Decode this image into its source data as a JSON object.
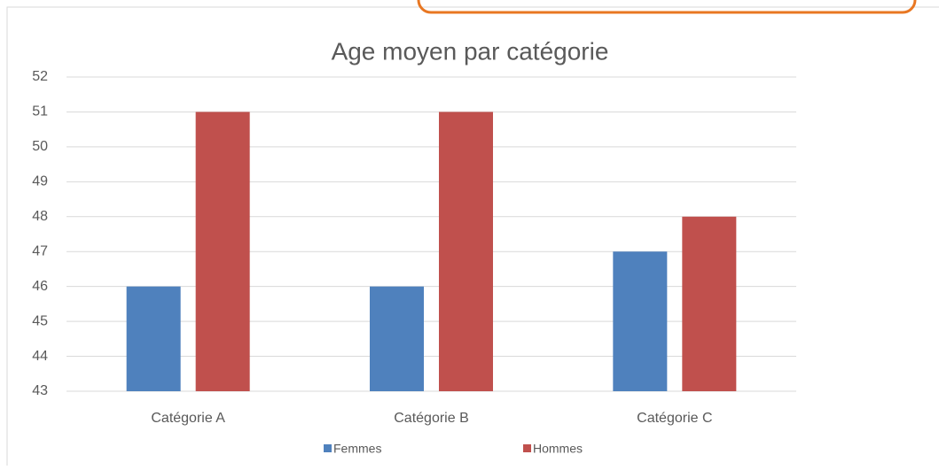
{
  "chart_data": {
    "type": "bar",
    "title": "Age moyen par catégorie",
    "categories": [
      "Catégorie A",
      "Catégorie B",
      "Catégorie C"
    ],
    "series": [
      {
        "name": "Femmes",
        "color": "#4f81bd",
        "values": [
          46,
          46,
          47
        ]
      },
      {
        "name": "Hommes",
        "color": "#c0504d",
        "values": [
          51,
          51,
          48
        ]
      }
    ],
    "ylim": [
      43,
      52
    ],
    "yticks": [
      43,
      44,
      45,
      46,
      47,
      48,
      49,
      50,
      51,
      52
    ],
    "grid": true,
    "legend": "bottom"
  }
}
